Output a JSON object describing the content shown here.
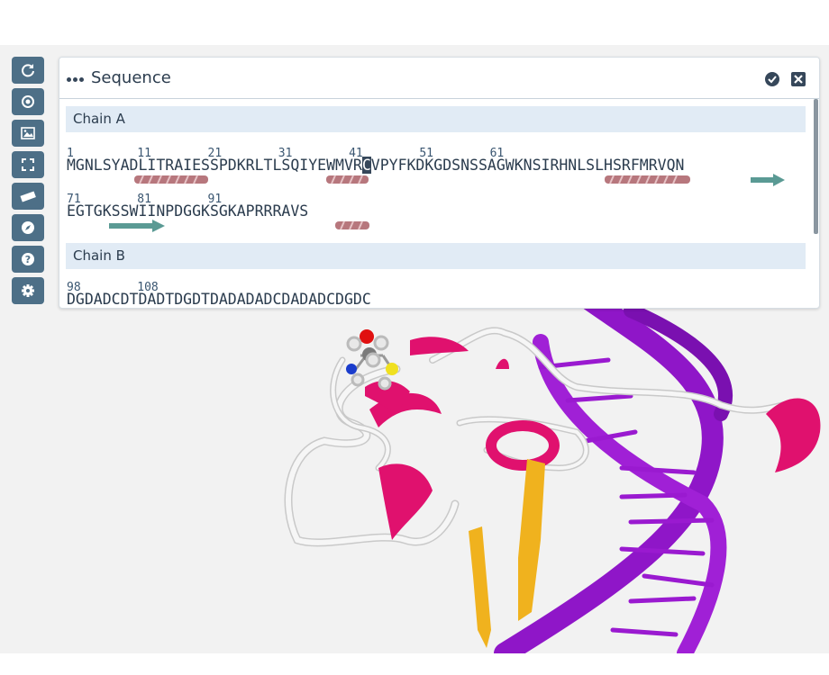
{
  "panel": {
    "title": "Sequence",
    "chains": [
      {
        "label": "Chain A",
        "rows": [
          {
            "numbers": "1         11        21        31        41        51        61",
            "sequence_before": "MGNLSYADLITRAIESSPDKRLTLSQIYEWMVR",
            "selected": "C",
            "sequence_after": "VPYFKDKGDSNSSAGWKNSIRHNLSLHSRFMRVQN"
          },
          {
            "numbers": "71        81        91",
            "sequence_before": "EGTGKSSWIINPDGGKSGKAPRRRAVS",
            "selected": "",
            "sequence_after": ""
          }
        ]
      },
      {
        "label": "Chain B",
        "rows": [
          {
            "numbers": "98        108",
            "sequence_before": "DGDADCDTDADTDGDTDADADADCDADADCDGDC",
            "selected": "",
            "sequence_after": ""
          }
        ]
      }
    ]
  },
  "toolbar": {
    "buttons": [
      "refresh-icon",
      "target-icon",
      "image-icon",
      "fullscreen-icon",
      "ruler-icon",
      "compass-icon",
      "help-icon",
      "gear-icon"
    ]
  },
  "colors": {
    "toolbar_bg": "#4d6f87",
    "helix": "#e0116e",
    "dna": "#8f16c8",
    "strand": "#f0b21e",
    "coil": "#f0f0f0",
    "chain_header_bg": "#e1ebf5",
    "sequence_helix": "#b7777d",
    "sequence_strand": "#5a9a94"
  }
}
